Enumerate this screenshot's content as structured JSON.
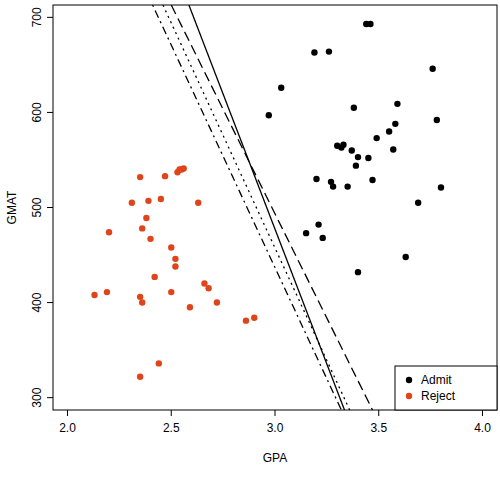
{
  "chart_data": {
    "type": "scatter",
    "x_label": "GPA",
    "y_label": "GMAT",
    "xlim": [
      1.93,
      4.07
    ],
    "ylim": [
      287,
      713
    ],
    "xticks": [
      {
        "value": 2,
        "label": "2.0"
      },
      {
        "value": 2.5,
        "label": "2.5"
      },
      {
        "value": 3,
        "label": "3.0"
      },
      {
        "value": 3.5,
        "label": "3.5"
      },
      {
        "value": 4,
        "label": "4.0"
      }
    ],
    "yticks": [
      300,
      400,
      500,
      600,
      700
    ],
    "grid": false,
    "legend": "bottom-right",
    "series": [
      {
        "name": "Admit",
        "type": "scatter",
        "color": "#000000",
        "marker": "circle",
        "x": [
          2.97,
          3.03,
          3.19,
          3.26,
          3.44,
          3.46,
          3.76,
          3.2,
          3.21,
          3.23,
          3.15,
          3.27,
          3.28,
          3.3,
          3.33,
          3.35,
          3.37,
          3.38,
          3.39,
          3.4,
          3.45,
          3.47,
          3.49,
          3.4,
          3.55,
          3.58,
          3.59,
          3.57,
          3.63,
          3.69,
          3.78,
          3.8,
          3.32
        ],
        "values": [
          597,
          626,
          663,
          664,
          693,
          693,
          646,
          530,
          482,
          468,
          473,
          527,
          522,
          565,
          566,
          522,
          560,
          605,
          544,
          553,
          552,
          529,
          573,
          432,
          580,
          588,
          609,
          561,
          448,
          505,
          592,
          521,
          563
        ]
      },
      {
        "name": "Reject",
        "type": "scatter",
        "color": "#e0441a",
        "marker": "circle",
        "x": [
          2.13,
          2.19,
          2.2,
          2.31,
          2.35,
          2.35,
          2.36,
          2.35,
          2.36,
          2.38,
          2.4,
          2.39,
          2.42,
          2.44,
          2.45,
          2.47,
          2.5,
          2.5,
          2.52,
          2.53,
          2.54,
          2.56,
          2.59,
          2.63,
          2.66,
          2.68,
          2.72,
          2.86,
          2.9,
          2.52,
          2.55
        ],
        "values": [
          408,
          411,
          474,
          505,
          532,
          406,
          400,
          322,
          478,
          489,
          467,
          507,
          427,
          336,
          509,
          533,
          411,
          458,
          446,
          537,
          540,
          541,
          395,
          505,
          420,
          415,
          400,
          381,
          384,
          438,
          540
        ]
      },
      {
        "type": "line",
        "color": "#000000",
        "line_style": "solid",
        "x": [
          2.585,
          3.335
        ],
        "values": [
          713,
          287
        ]
      },
      {
        "type": "line",
        "color": "#000000",
        "line_style": "dashed",
        "x": [
          2.5,
          3.47
        ],
        "values": [
          713,
          287
        ]
      },
      {
        "type": "line",
        "color": "#000000",
        "line_style": "dotted",
        "x": [
          2.46,
          3.36
        ],
        "values": [
          713,
          287
        ]
      },
      {
        "type": "line",
        "color": "#000000",
        "line_style": "dotdash",
        "x": [
          2.41,
          3.32
        ],
        "values": [
          713,
          287
        ]
      }
    ]
  }
}
